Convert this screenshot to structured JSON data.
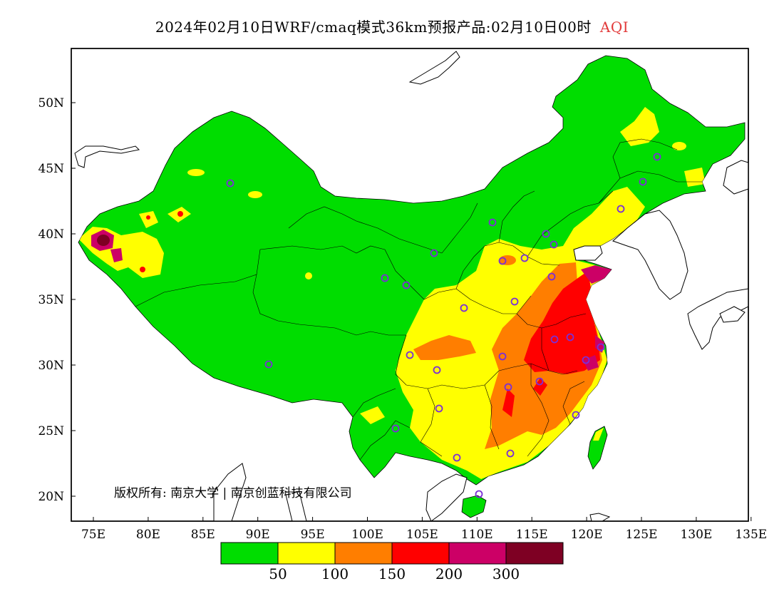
{
  "header": {
    "title": "2024年02月10日WRF/cmaq模式36km预报产品:02月10日00时",
    "pollutant": "AQI"
  },
  "map": {
    "lat_labels": [
      "50N",
      "45N",
      "40N",
      "35N",
      "30N",
      "25N",
      "20N"
    ],
    "lon_labels": [
      "75E",
      "80E",
      "85E",
      "90E",
      "95E",
      "100E",
      "105E",
      "110E",
      "115E",
      "120E",
      "125E",
      "130E",
      "135E"
    ],
    "copyright": "版权所有: 南京大学 | 南京创蓝科技有限公司",
    "colors": {
      "good": "#00dd00",
      "moderate": "#ffff00",
      "usg": "#ff7e00",
      "unhealthy": "#ff0000",
      "very_unhealthy": "#cc0066",
      "hazardous": "#7e0023",
      "station_marker": "#8a2be2"
    }
  },
  "legend": {
    "colors": [
      "#00dd00",
      "#ffff00",
      "#ff7e00",
      "#ff0000",
      "#cc0066",
      "#7e0023"
    ],
    "labels": [
      "50",
      "100",
      "150",
      "200",
      "300"
    ]
  }
}
